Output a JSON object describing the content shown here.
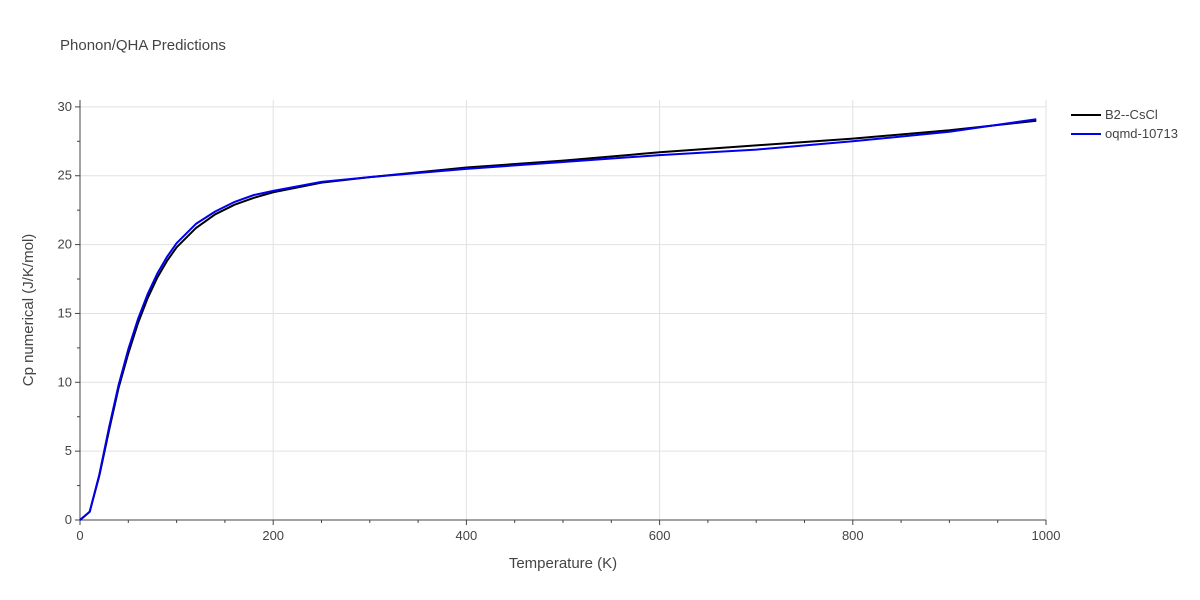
{
  "chart_data": {
    "type": "line",
    "title": "Phonon/QHA Predictions",
    "xlabel": "Temperature (K)",
    "ylabel": "Cp numerical (J/K/mol)",
    "xlim": [
      0,
      1000
    ],
    "ylim": [
      0,
      30.5
    ],
    "xticks": [
      0,
      200,
      400,
      600,
      800,
      1000
    ],
    "yticks": [
      0,
      5,
      10,
      15,
      20,
      25,
      30
    ],
    "grid": true,
    "legend_position": "top-right",
    "series": [
      {
        "name": "B2--CsCl",
        "color": "#000000",
        "x": [
          0,
          10,
          20,
          30,
          40,
          50,
          60,
          70,
          80,
          90,
          100,
          120,
          140,
          160,
          180,
          200,
          250,
          300,
          400,
          500,
          600,
          700,
          800,
          900,
          990
        ],
        "y": [
          0,
          0.6,
          3.2,
          6.5,
          9.6,
          12.1,
          14.3,
          16.1,
          17.6,
          18.8,
          19.8,
          21.2,
          22.2,
          22.9,
          23.4,
          23.8,
          24.5,
          24.9,
          25.6,
          26.1,
          26.7,
          27.2,
          27.7,
          28.3,
          29.0
        ]
      },
      {
        "name": "oqmd-10713",
        "color": "#0000ee",
        "x": [
          0,
          10,
          20,
          30,
          40,
          50,
          60,
          70,
          80,
          90,
          100,
          120,
          140,
          160,
          180,
          200,
          250,
          300,
          400,
          500,
          600,
          700,
          800,
          900,
          990
        ],
        "y": [
          0,
          0.6,
          3.3,
          6.7,
          9.8,
          12.4,
          14.6,
          16.4,
          17.9,
          19.1,
          20.1,
          21.5,
          22.4,
          23.1,
          23.6,
          23.9,
          24.55,
          24.9,
          25.5,
          26.0,
          26.5,
          26.9,
          27.5,
          28.2,
          29.1
        ]
      }
    ]
  }
}
